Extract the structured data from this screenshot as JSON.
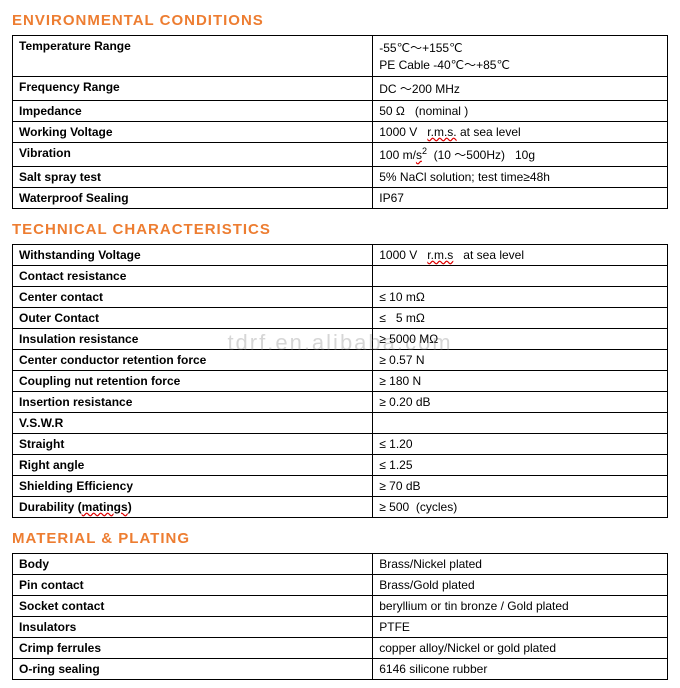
{
  "heading_color": "#ed7d31",
  "watermark": "tdrf.en.alibaba.com",
  "sections": [
    {
      "title": "ENVIRONMENTAL    CONDITIONS",
      "rows": [
        {
          "label": "Temperature Range",
          "value_html": "-55℃～+155℃<br>PE Cable -40℃～+85℃"
        },
        {
          "label": "Frequency Range",
          "value_html": "DC ～200 MHz"
        },
        {
          "label": "Impedance",
          "value_html": "50 Ω&nbsp;&nbsp;&nbsp;(nominal )"
        },
        {
          "label": "Working Voltage",
          "value_html": "1000 V&nbsp;&nbsp;&nbsp;<span class='redline'>r.m.s.</span> at sea level"
        },
        {
          "label": "Vibration",
          "value_html": "100 m/<span class='redline'>s</span><sup>2</sup>&nbsp;&nbsp;(10 ～500Hz)&nbsp;&nbsp;&nbsp;10g"
        },
        {
          "label": "Salt spray test",
          "value_html": "5% NaCl solution; test time≥48h"
        },
        {
          "label": "Waterproof Sealing",
          "value_html": "IP67"
        }
      ]
    },
    {
      "title": "TECHNICAL    CHARACTERISTICS",
      "rows": [
        {
          "label": "Withstanding Voltage",
          "value_html": "1000 V&nbsp;&nbsp;&nbsp;<span class='redline'>r.m.s</span>&nbsp;&nbsp;&nbsp;at sea level"
        },
        {
          "label": "Contact resistance",
          "value_html": ""
        },
        {
          "label": "Center contact",
          "value_html": "≤ 10 mΩ"
        },
        {
          "label": "Outer Contact",
          "value_html": "≤ &nbsp;&nbsp;5 mΩ"
        },
        {
          "label": "Insulation resistance",
          "value_html": "≥ 5000 MΩ"
        },
        {
          "label": "Center conductor retention force",
          "value_html": "≥ 0.57 N"
        },
        {
          "label": "Coupling nut retention force",
          "value_html": "≥ 180 N"
        },
        {
          "label": "Insertion resistance",
          "value_html": "≥ 0.20 dB"
        },
        {
          "label": "V.S.W.R",
          "value_html": ""
        },
        {
          "label": "Straight",
          "value_html": "≤ 1.20"
        },
        {
          "label": "Right angle",
          "value_html": "≤ 1.25"
        },
        {
          "label": "Shielding Efficiency",
          "value_html": "≥ 70 dB"
        },
        {
          "label": "Durability (<span class='redline'>matings</span>)",
          "value_html": "≥ 500&nbsp;&nbsp;(cycles)"
        }
      ]
    },
    {
      "title": "MATERIAL &   PLATING",
      "rows": [
        {
          "label": "Body",
          "value_html": "Brass/Nickel plated"
        },
        {
          "label": "Pin contact",
          "value_html": "Brass/Gold plated"
        },
        {
          "label": "Socket contact",
          "value_html": "beryllium or tin bronze / Gold plated"
        },
        {
          "label": "Insulators",
          "value_html": "PTFE"
        },
        {
          "label": "Crimp ferrules",
          "value_html": "copper alloy/Nickel or gold plated"
        },
        {
          "label": "O-ring sealing",
          "value_html": "6146 silicone rubber"
        }
      ]
    }
  ]
}
